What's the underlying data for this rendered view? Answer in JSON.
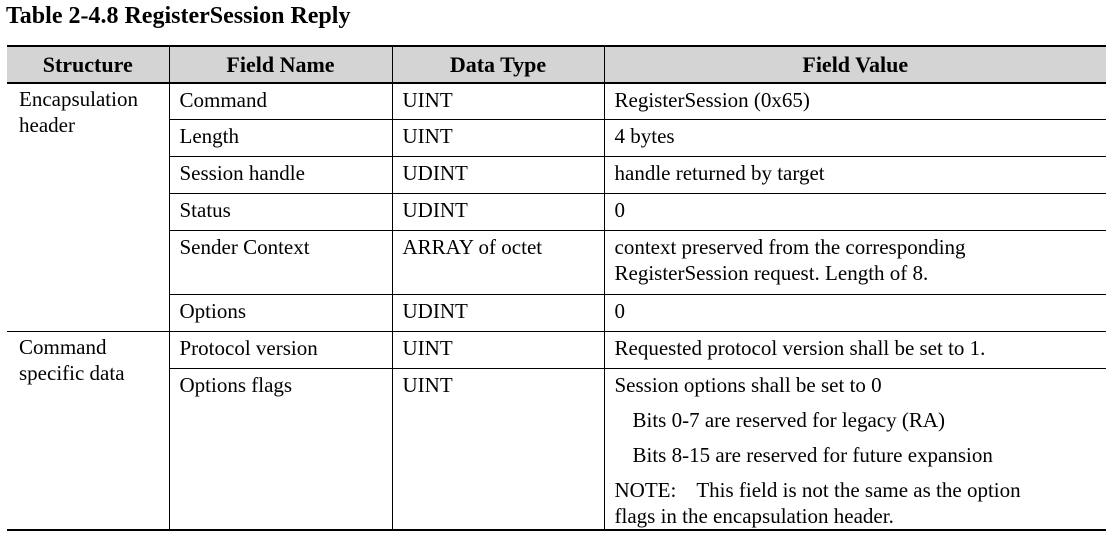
{
  "caption": "Table 2-4.8 RegisterSession Reply",
  "headers": [
    "Structure",
    "Field Name",
    "Data Type",
    "Field Value"
  ],
  "groups": [
    {
      "structure": "Encapsulation header",
      "rows": [
        {
          "field": "Command",
          "type": "UINT",
          "value": "RegisterSession (0x65)"
        },
        {
          "field": "Length",
          "type": "UINT",
          "value": "4 bytes"
        },
        {
          "field": "Session handle",
          "type": "UDINT",
          "value": "handle returned by target"
        },
        {
          "field": "Status",
          "type": "UDINT",
          "value": "0"
        },
        {
          "field": "Sender Context",
          "type": "ARRAY of  octet",
          "value_lines": [
            "context preserved from the corresponding",
            "RegisterSession request. Length of 8."
          ]
        },
        {
          "field": "Options",
          "type": "UDINT",
          "value": "0"
        }
      ]
    },
    {
      "structure": "Command specific data",
      "rows": [
        {
          "field": "Protocol version",
          "type": "UINT",
          "value": "Requested protocol version shall be set to 1."
        },
        {
          "field": "Options flags",
          "type": "UINT",
          "value_intro": "Session options shall be set to 0",
          "value_bits": [
            "Bits 0-7 are reserved for legacy (RA)",
            "Bits 8-15 are reserved for future expansion"
          ],
          "note_label": "NOTE:",
          "note_lines": [
            "This field is not the same as the option",
            "flags in the encapsulation header."
          ]
        }
      ]
    }
  ]
}
